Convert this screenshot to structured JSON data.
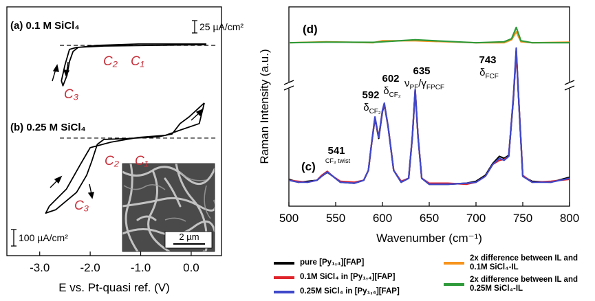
{
  "chart_data": [
    {
      "type": "line",
      "title": "(a) 0.1 M SiCl₄",
      "xlim": [
        -3.65,
        0.6
      ],
      "ylim": [
        -145,
        78
      ],
      "scale_bar": {
        "value": 25,
        "label": "25 µA/cm²"
      },
      "annotations": [
        "C₂",
        "C₁",
        "C₃"
      ],
      "series": [
        {
          "color": "#000000",
          "x": [
            0.3,
            -1.73,
            -2.27,
            -2.41,
            -2.5,
            -2.57,
            -2.54,
            -2.46,
            -2.41,
            -2.34,
            -2.24,
            -1.86,
            -1.05,
            -0.38,
            0.3
          ],
          "values": [
            1.4,
            -1.4,
            -4.2,
            -8.3,
            -40,
            -72,
            -82,
            -61,
            -33,
            -12.5,
            -4.2,
            0,
            2.8,
            2.8,
            2.8
          ]
        }
      ]
    },
    {
      "type": "line",
      "title": "(b) 0.25 M SiCl₄",
      "xlabel": "E vs. Pt-quasi ref. (V)",
      "xlim": [
        -3.65,
        0.6
      ],
      "ylim": [
        -713,
        129
      ],
      "xticks": [
        {
          "value": -3,
          "label": "-3.0"
        },
        {
          "value": -2,
          "label": "-2.0"
        },
        {
          "value": -1,
          "label": "-1.0"
        },
        {
          "value": 0,
          "label": "0.0"
        }
      ],
      "scale_bar": {
        "value": 100,
        "label": "100 µA/cm²"
      },
      "annotations": [
        "C₂",
        "C₁",
        "C₃"
      ],
      "inset_scale": "2 µm",
      "series": [
        {
          "color": "#000000",
          "x": [
            0.26,
            0.16,
            -0.24,
            -0.51,
            -1.05,
            -1.59,
            -2.0,
            -2.2,
            -2.47,
            -2.81,
            -2.88,
            -2.68,
            -2.27,
            -2.07,
            -1.97,
            -1.86,
            -1.73,
            -1.32,
            -0.65,
            -0.38,
            -0.22,
            -0.04,
            0.26
          ],
          "values": [
            213,
            88,
            46,
            17,
            4,
            -25,
            -58,
            -163,
            -309,
            -413,
            -455,
            -434,
            -329,
            -225,
            -142,
            -38,
            -8,
            -4,
            8,
            25,
            88,
            129,
            213
          ]
        }
      ]
    },
    {
      "type": "line",
      "xlabel": "Wavenumber (cm⁻¹)",
      "ylabel": "Raman Intensity (a.u.)",
      "xlim": [
        500,
        800
      ],
      "ylim": [
        0,
        100
      ],
      "xticks": [
        500,
        550,
        600,
        650,
        700,
        750,
        800
      ],
      "panel_labels": [
        "(c)",
        "(d)"
      ],
      "peak_labels": [
        {
          "wavenumber": "541",
          "mode": "CF₃ twist"
        },
        {
          "wavenumber": "592",
          "mode": "δ",
          "mode_sub": "CF₂"
        },
        {
          "wavenumber": "602",
          "mode": "δ",
          "mode_sub": "CF₂"
        },
        {
          "wavenumber": "635",
          "mode": "ν",
          "mode_sub": "PF",
          "mode2": "/γ",
          "mode2_sub": "FPCF"
        },
        {
          "wavenumber": "743",
          "mode": "δ",
          "mode_sub": "FCF"
        }
      ],
      "series": [
        {
          "name": "pure [Py₁,₄][FAP]",
          "color": "#000000",
          "x": [
            500,
            510,
            520,
            530,
            535,
            541,
            547,
            555,
            570,
            580,
            585,
            588,
            592,
            596,
            600,
            602,
            606,
            612,
            620,
            628,
            632,
            635,
            638,
            642,
            650,
            670,
            690,
            700,
            710,
            718,
            725,
            730,
            735,
            740,
            743,
            746,
            750,
            760,
            780,
            800
          ],
          "values": [
            13.5,
            12,
            12.5,
            13,
            15,
            17,
            15,
            12,
            11.5,
            13,
            18,
            30,
            44,
            34,
            47.5,
            51,
            40,
            18,
            12,
            14,
            35,
            58,
            35,
            14,
            11,
            11,
            11.5,
            12.5,
            15.5,
            21.5,
            25,
            24,
            25.5,
            54,
            78,
            50,
            15,
            12.5,
            12,
            14.5
          ]
        },
        {
          "name": "0.1M SiCl₄ in [Py₁,₄][FAP]",
          "color": "#e0242b",
          "x": [
            500,
            510,
            520,
            530,
            535,
            541,
            547,
            555,
            570,
            580,
            585,
            588,
            592,
            596,
            600,
            602,
            606,
            612,
            620,
            628,
            632,
            635,
            638,
            642,
            650,
            670,
            690,
            700,
            710,
            718,
            725,
            730,
            735,
            740,
            743,
            746,
            750,
            760,
            780,
            800
          ],
          "values": [
            13,
            12.5,
            12,
            13,
            15.5,
            17.5,
            15,
            12.5,
            12,
            13,
            18,
            30,
            44.5,
            34.5,
            48,
            51.5,
            40,
            18,
            12.5,
            14,
            35,
            58.5,
            35,
            14,
            11.5,
            11.5,
            11,
            12,
            15,
            21,
            23,
            23.5,
            25,
            55,
            77,
            50,
            15.5,
            12,
            12.5,
            13.5
          ]
        },
        {
          "name": "0.25M SiCl₄ in [Py₁,₄][FAP]",
          "color": "#3f48c9",
          "x": [
            500,
            510,
            520,
            530,
            535,
            541,
            547,
            555,
            570,
            580,
            585,
            588,
            592,
            596,
            600,
            602,
            606,
            612,
            620,
            628,
            632,
            635,
            638,
            642,
            650,
            670,
            690,
            700,
            710,
            718,
            725,
            730,
            735,
            740,
            743,
            746,
            750,
            760,
            780,
            800
          ],
          "values": [
            13,
            12,
            12,
            13,
            15,
            17.2,
            15,
            12,
            11.5,
            13,
            18,
            30,
            44.8,
            34.5,
            48,
            51.7,
            40,
            18,
            12,
            14,
            35,
            58.6,
            35,
            14,
            11,
            11,
            11.5,
            12,
            15,
            21,
            24,
            23,
            25,
            55,
            79.3,
            50,
            15,
            12,
            12,
            14
          ]
        },
        {
          "name": "2x difference between IL and 0.1M SiCl₄-IL",
          "color": "#f7941d",
          "x": [
            500,
            540,
            590,
            600,
            635,
            700,
            730,
            738,
            743,
            748,
            760,
            800
          ],
          "values": [
            82,
            82.5,
            82,
            83,
            83,
            82,
            82,
            83.5,
            87.5,
            82.5,
            82,
            82.3
          ]
        },
        {
          "name": "2x difference between IL and 0.25M SiCl₄-IL",
          "color": "#2e9a3a",
          "x": [
            500,
            540,
            590,
            600,
            635,
            700,
            730,
            738,
            743,
            748,
            760,
            800
          ],
          "values": [
            82,
            82.3,
            82.2,
            82.5,
            83.5,
            82,
            82.5,
            84,
            89.7,
            83,
            82,
            82
          ]
        }
      ]
    }
  ]
}
